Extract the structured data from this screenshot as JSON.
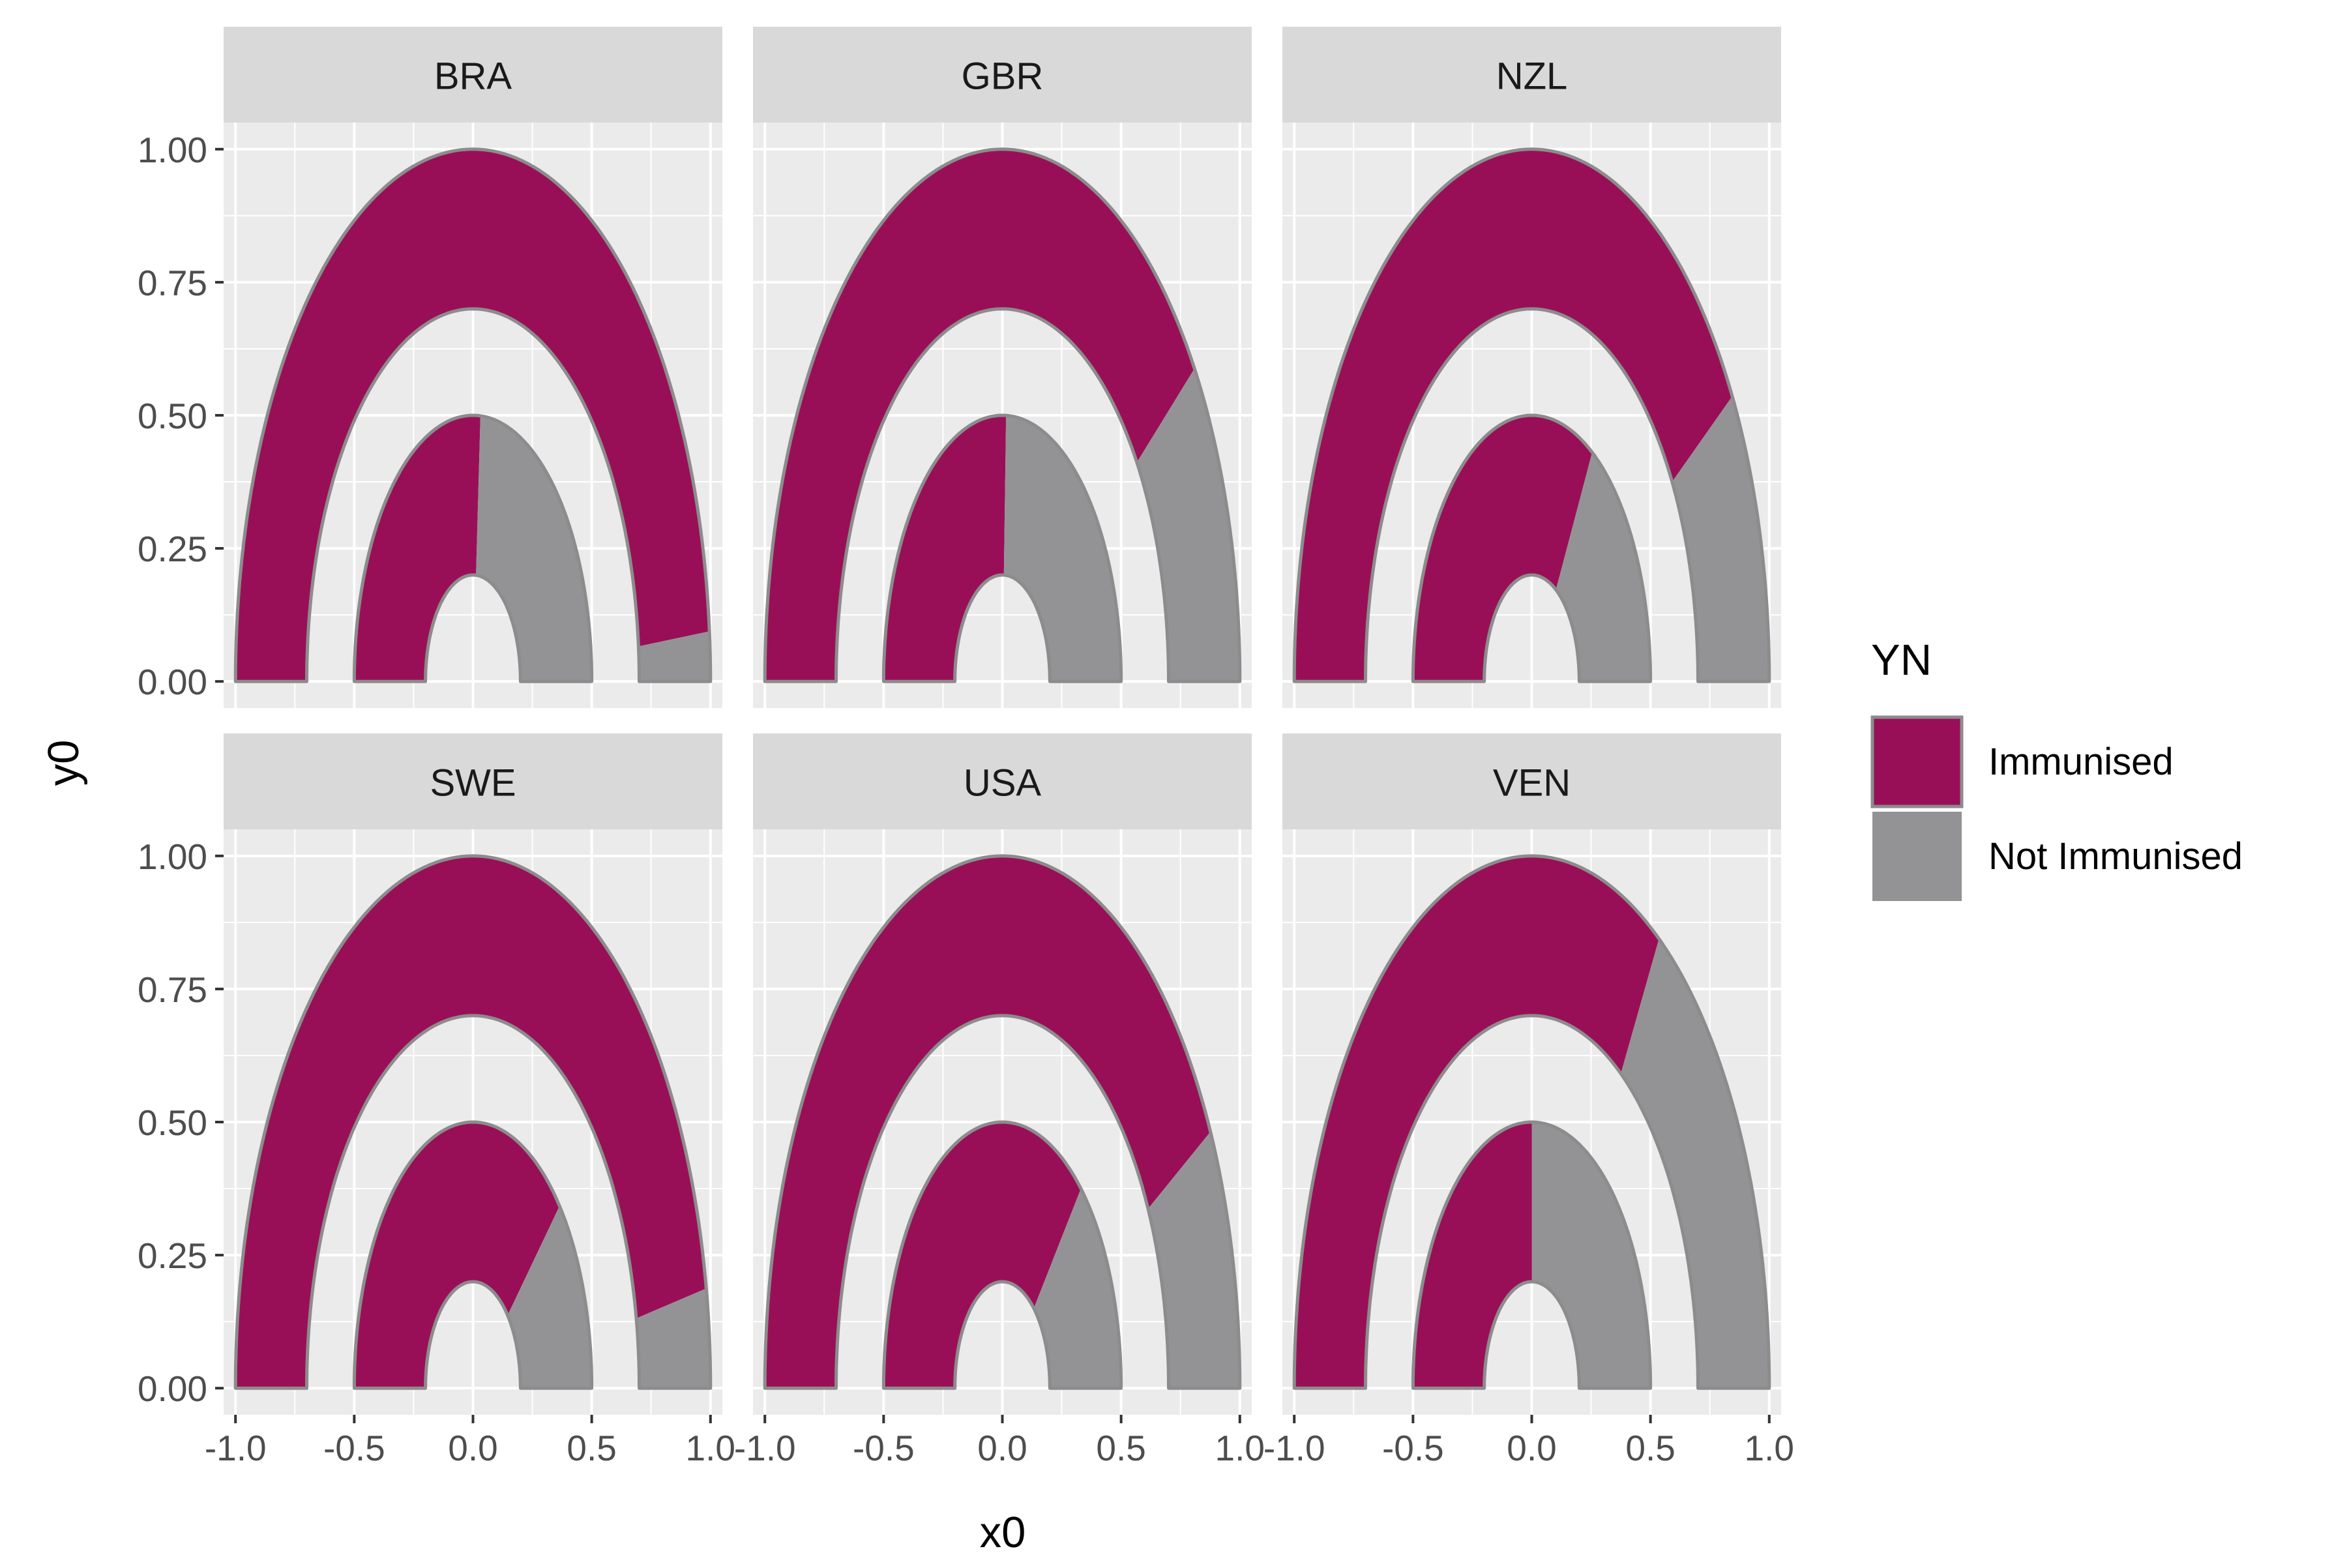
{
  "chart_data": {
    "type": "faceted-arc",
    "xlabel": "x0",
    "ylabel": "y0",
    "xlim": [
      -1.05,
      1.05
    ],
    "ylim": [
      -0.05,
      1.05
    ],
    "x_ticks": [
      -1.0,
      -0.5,
      0.0,
      0.5,
      1.0
    ],
    "x_tick_labels": [
      "-1.0",
      "-0.5",
      "0.0",
      "0.5",
      "1.0"
    ],
    "y_ticks": [
      0.0,
      0.25,
      0.5,
      0.75,
      1.0
    ],
    "y_tick_labels": [
      "0.00",
      "0.25",
      "0.50",
      "0.75",
      "1.00"
    ],
    "grid": true,
    "legend": {
      "title": "YN",
      "placement": "right",
      "entries": [
        {
          "label": "Immunised",
          "color": "#990F57"
        },
        {
          "label": "Not Immunised",
          "color": "#939396"
        }
      ]
    },
    "rings": [
      {
        "r0": 0.2,
        "r1": 0.5
      },
      {
        "r0": 0.7,
        "r1": 1.0
      }
    ],
    "panels": [
      {
        "title": "BRA",
        "immunised_share": [
          0.52,
          0.97
        ]
      },
      {
        "title": "GBR",
        "immunised_share": [
          0.51,
          0.8
        ]
      },
      {
        "title": "NZL",
        "immunised_share": [
          0.67,
          0.82
        ]
      },
      {
        "title": "SWE",
        "immunised_share": [
          0.76,
          0.94
        ]
      },
      {
        "title": "USA",
        "immunised_share": [
          0.73,
          0.84
        ]
      },
      {
        "title": "VEN",
        "immunised_share": [
          0.5,
          0.68
        ]
      }
    ]
  },
  "colors": {
    "panel_bg": "#EBEBEB",
    "strip_bg": "#D9D9D9",
    "grid": "#FFFFFF",
    "outline": "#8C8C8C",
    "tick_text": "#4D4D4D",
    "title_text": "#1A1A1A"
  }
}
